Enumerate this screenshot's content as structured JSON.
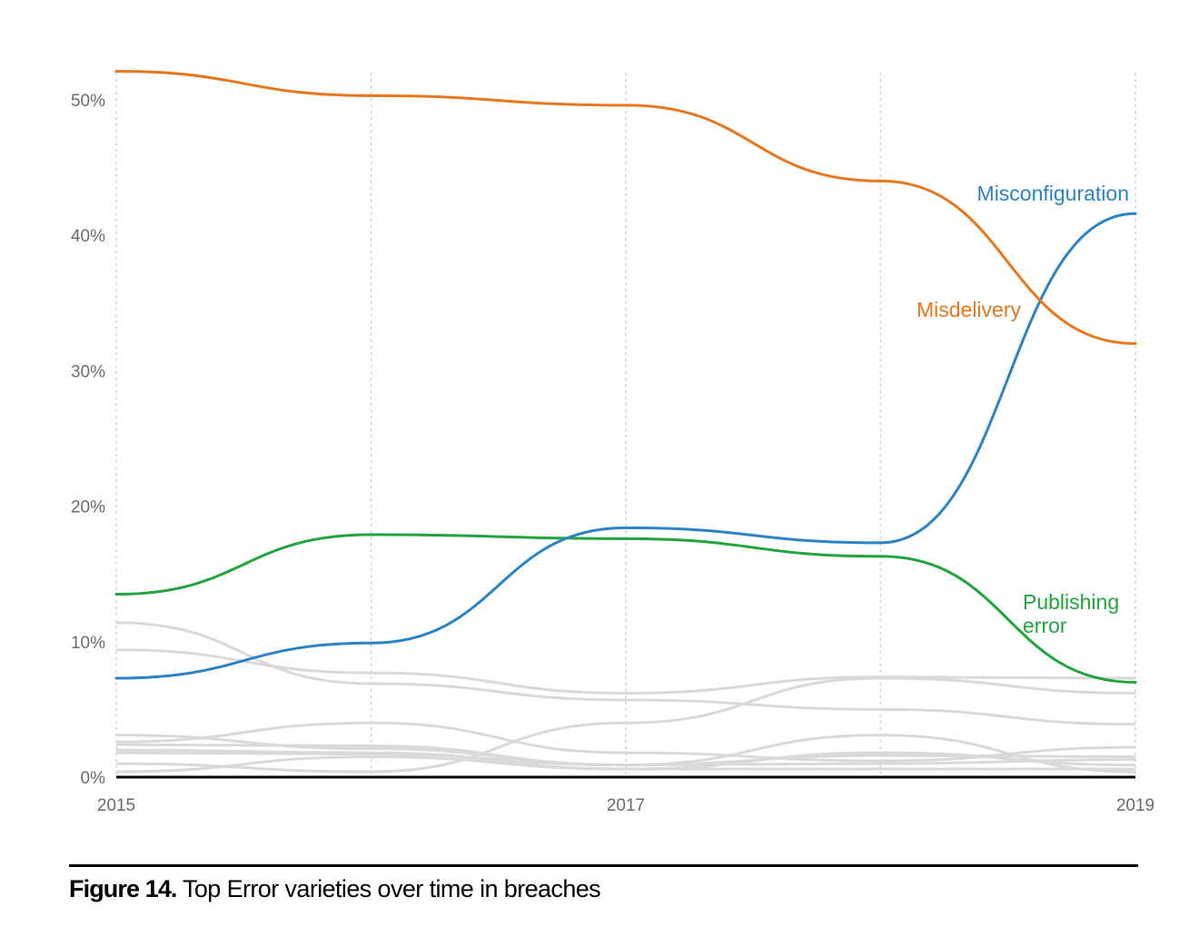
{
  "caption": {
    "prefix": "Figure 14.",
    "text": "Top Error varieties over time in breaches"
  },
  "chart_data": {
    "type": "line",
    "title": "Top Error varieties over time in breaches",
    "xlabel": "",
    "ylabel": "",
    "x": [
      2015,
      2016,
      2017,
      2018,
      2019
    ],
    "xlim": [
      2015,
      2019
    ],
    "ylim": [
      0,
      52
    ],
    "x_tick_labels": [
      {
        "value": 2015,
        "label": "2015"
      },
      {
        "value": 2017,
        "label": "2017"
      },
      {
        "value": 2019,
        "label": "2019"
      }
    ],
    "y_tick_labels": [
      {
        "value": 0,
        "label": "0%"
      },
      {
        "value": 10,
        "label": "10%"
      },
      {
        "value": 20,
        "label": "20%"
      },
      {
        "value": 30,
        "label": "30%"
      },
      {
        "value": 40,
        "label": "40%"
      },
      {
        "value": 50,
        "label": "50%"
      }
    ],
    "vertical_grid": [
      2015,
      2016,
      2017,
      2018,
      2019
    ],
    "series": [
      {
        "name": "Misdelivery",
        "label": "Misdelivery",
        "color": "#e8761d",
        "values": [
          52.1,
          50.3,
          49.6,
          44.0,
          32.0
        ]
      },
      {
        "name": "Misconfiguration",
        "label": "Misconfiguration",
        "color": "#2b83c4",
        "values": [
          7.3,
          9.9,
          18.4,
          17.3,
          41.6
        ]
      },
      {
        "name": "Publishing error",
        "label_lines": [
          "Publishing",
          "error"
        ],
        "color": "#21a43c",
        "values": [
          13.5,
          17.9,
          17.6,
          16.3,
          7.0
        ]
      }
    ],
    "background_series": {
      "color": "#d9d9d9",
      "values": [
        [
          11.4,
          6.9,
          5.7,
          5.0,
          3.9
        ],
        [
          9.4,
          7.7,
          6.2,
          7.4,
          7.3
        ],
        [
          3.1,
          2.1,
          0.9,
          3.1,
          0.4
        ],
        [
          2.6,
          4.0,
          1.8,
          1.2,
          2.2
        ],
        [
          2.4,
          2.3,
          0.9,
          1.6,
          1.5
        ],
        [
          2.0,
          1.8,
          0.6,
          1.8,
          0.9
        ],
        [
          1.8,
          1.7,
          0.9,
          1.0,
          1.3
        ],
        [
          1.0,
          0.4,
          4.0,
          7.3,
          6.2
        ],
        [
          0.4,
          1.5,
          0.6,
          0.6,
          0.6
        ]
      ]
    }
  }
}
